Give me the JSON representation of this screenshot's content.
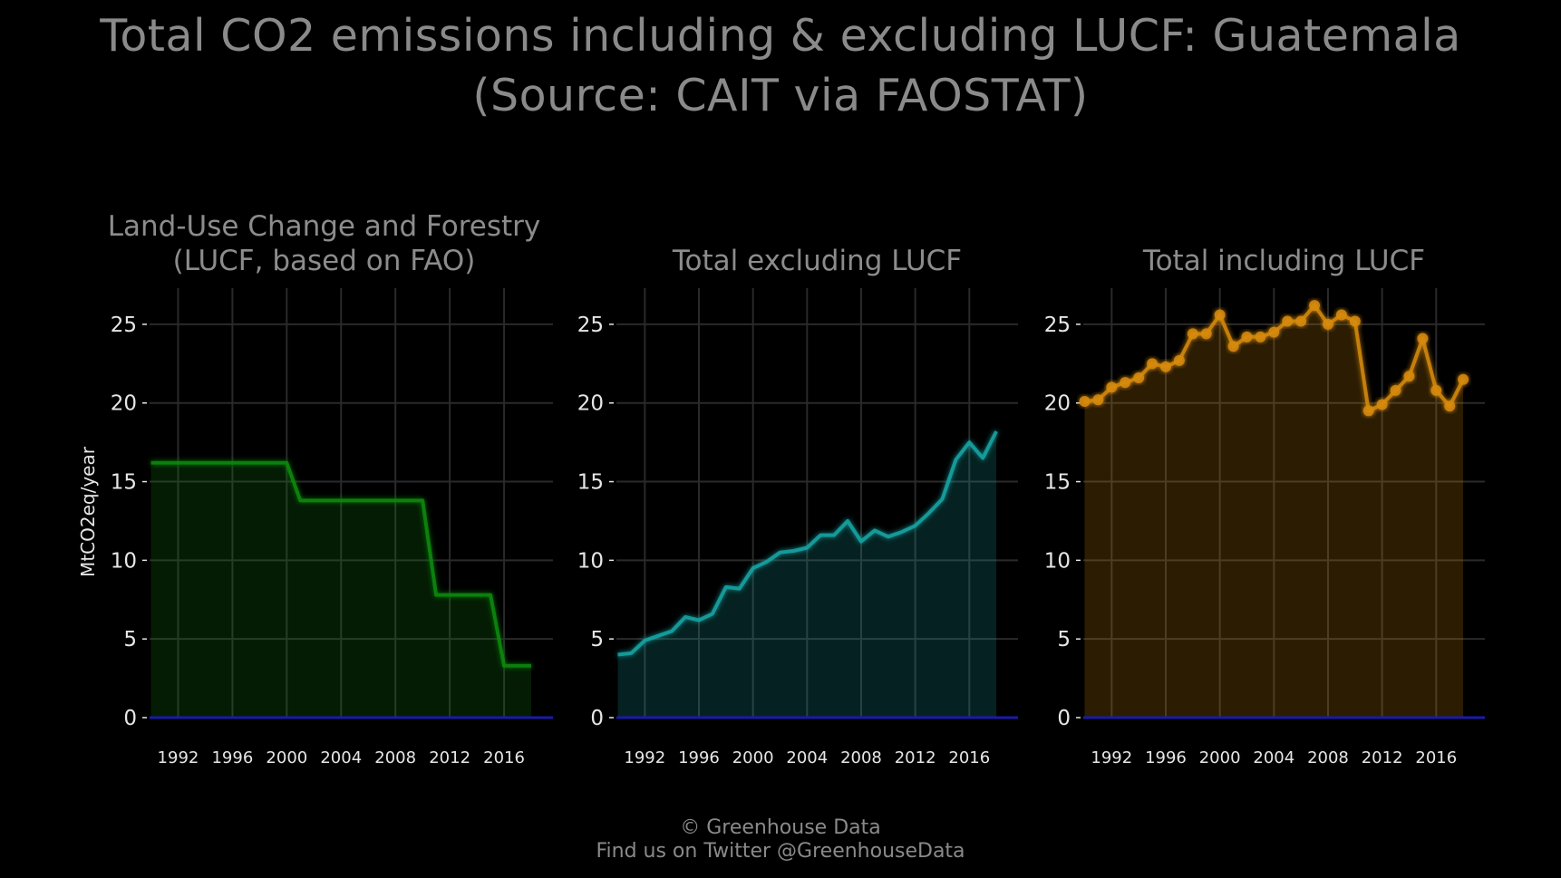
{
  "title_line1": "Total CO2 emissions including & excluding LUCF: Guatemala",
  "title_line2": "(Source: CAIT via FAOSTAT)",
  "footer_line1": "© Greenhouse Data",
  "footer_line2": "Find us on Twitter @GreenhouseData",
  "colors": {
    "background": "#000000",
    "grid": "#2a2a2a",
    "text": "#8c8c8c",
    "tick_text": "#e6e6e6",
    "zero_line": "#1a1aa6",
    "lucf": "#0f8a0f",
    "excl": "#17a6a6",
    "incl": "#d68a0c"
  },
  "chart_data": [
    {
      "type": "area",
      "title": "Land-Use Change and Forestry\n(LUCF, based on FAO)",
      "ylabel": "MtCO2eq/year",
      "series_key": "lucf",
      "step": true,
      "markers": false,
      "x": [
        1990,
        1991,
        1992,
        1993,
        1994,
        1995,
        1996,
        1997,
        1998,
        1999,
        2000,
        2001,
        2002,
        2003,
        2004,
        2005,
        2006,
        2007,
        2008,
        2009,
        2010,
        2011,
        2012,
        2013,
        2014,
        2015,
        2016,
        2017,
        2018
      ],
      "values": [
        16.2,
        16.2,
        16.2,
        16.2,
        16.2,
        16.2,
        16.2,
        16.2,
        16.2,
        16.2,
        16.2,
        13.8,
        13.8,
        13.8,
        13.8,
        13.8,
        13.8,
        13.8,
        13.8,
        13.8,
        13.8,
        7.8,
        7.8,
        7.8,
        7.8,
        7.8,
        3.3,
        3.3,
        3.3
      ],
      "xticks": [
        1992,
        1996,
        2000,
        2004,
        2008,
        2012,
        2016
      ],
      "yticks": [
        0,
        5,
        10,
        15,
        20,
        25
      ],
      "xlim": [
        1989.9,
        2019.6
      ],
      "ylim": [
        0,
        27.3
      ]
    },
    {
      "type": "area",
      "title": "Total excluding LUCF",
      "ylabel": "",
      "series_key": "excl",
      "step": false,
      "markers": false,
      "x": [
        1990,
        1991,
        1992,
        1993,
        1994,
        1995,
        1996,
        1997,
        1998,
        1999,
        2000,
        2001,
        2002,
        2003,
        2004,
        2005,
        2006,
        2007,
        2008,
        2009,
        2010,
        2011,
        2012,
        2013,
        2014,
        2015,
        2016,
        2017,
        2018
      ],
      "values": [
        4.0,
        4.1,
        4.9,
        5.2,
        5.5,
        6.4,
        6.2,
        6.6,
        8.3,
        8.2,
        9.5,
        9.9,
        10.5,
        10.6,
        10.8,
        11.6,
        11.6,
        12.5,
        11.2,
        11.9,
        11.5,
        11.8,
        12.2,
        13.0,
        13.9,
        16.4,
        17.5,
        16.5,
        18.2
      ],
      "xticks": [
        1992,
        1996,
        2000,
        2004,
        2008,
        2012,
        2016
      ],
      "yticks": [
        0,
        5,
        10,
        15,
        20,
        25
      ],
      "xlim": [
        1989.9,
        2019.6
      ],
      "ylim": [
        0,
        27.3
      ]
    },
    {
      "type": "area",
      "title": "Total including LUCF",
      "ylabel": "",
      "series_key": "incl",
      "step": false,
      "markers": true,
      "x": [
        1990,
        1991,
        1992,
        1993,
        1994,
        1995,
        1996,
        1997,
        1998,
        1999,
        2000,
        2001,
        2002,
        2003,
        2004,
        2005,
        2006,
        2007,
        2008,
        2009,
        2010,
        2011,
        2012,
        2013,
        2014,
        2015,
        2016,
        2017,
        2018
      ],
      "values": [
        20.1,
        20.2,
        21.0,
        21.3,
        21.6,
        22.5,
        22.3,
        22.7,
        24.4,
        24.4,
        25.6,
        23.6,
        24.2,
        24.2,
        24.5,
        25.2,
        25.2,
        26.2,
        25.0,
        25.6,
        25.2,
        19.5,
        19.9,
        20.8,
        21.7,
        24.1,
        20.8,
        19.8,
        21.5
      ],
      "xticks": [
        1992,
        1996,
        2000,
        2004,
        2008,
        2012,
        2016
      ],
      "yticks": [
        0,
        5,
        10,
        15,
        20,
        25
      ],
      "xlim": [
        1989.9,
        2019.6
      ],
      "ylim": [
        0,
        27.3
      ]
    }
  ]
}
